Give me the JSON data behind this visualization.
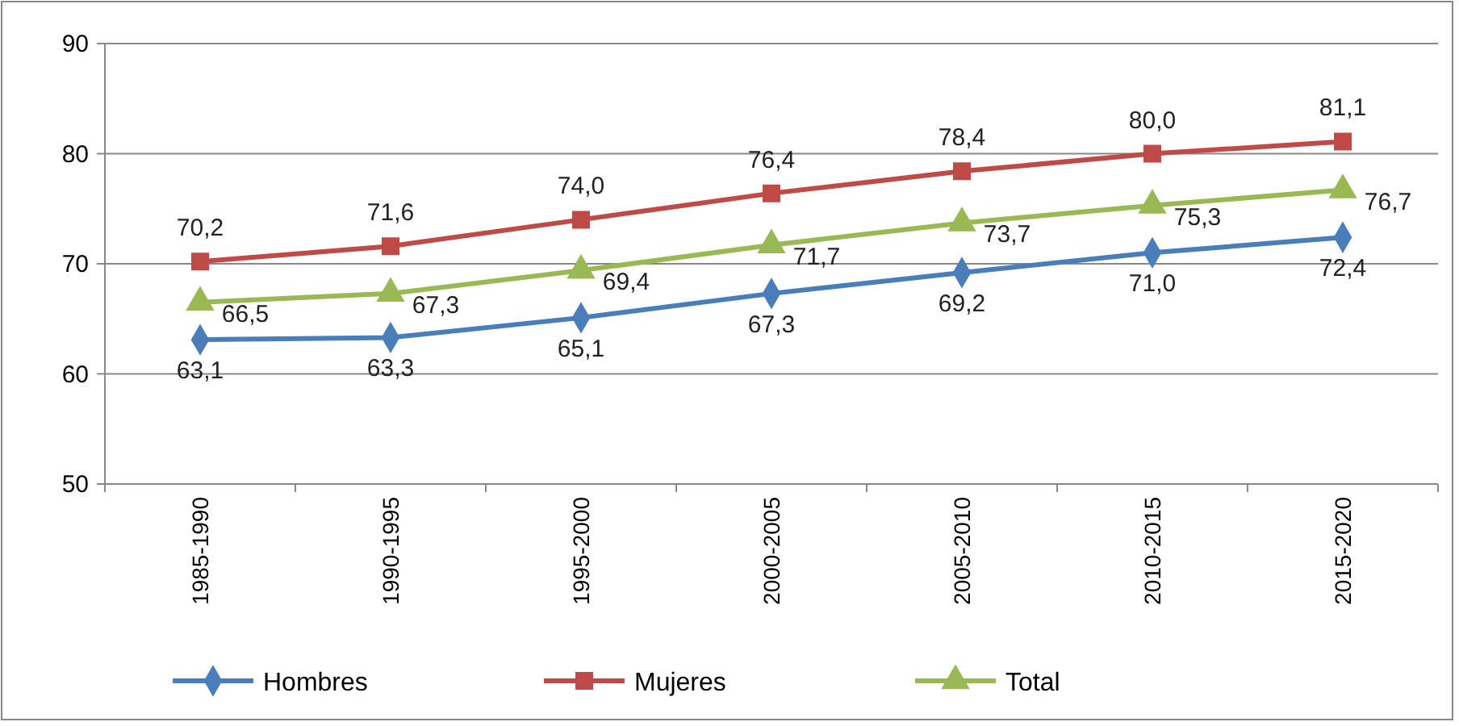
{
  "chart_data": {
    "type": "line",
    "categories": [
      "1985-1990",
      "1990-1995",
      "1995-2000",
      "2000-2005",
      "2005-2010",
      "2010-2015",
      "2015-2020"
    ],
    "series": [
      {
        "name": "Hombres",
        "color": "#4a7ebb",
        "marker": "diamond",
        "values": [
          63.1,
          63.3,
          65.1,
          67.3,
          69.2,
          71.0,
          72.4
        ],
        "value_labels": [
          "63,1",
          "63,3",
          "65,1",
          "67,3",
          "69,2",
          "71,0",
          "72,4"
        ]
      },
      {
        "name": "Mujeres",
        "color": "#be4b48",
        "marker": "square",
        "values": [
          70.2,
          71.6,
          74.0,
          76.4,
          78.4,
          80.0,
          81.1
        ],
        "value_labels": [
          "70,2",
          "71,6",
          "74,0",
          "76,4",
          "78,4",
          "80,0",
          "81,1"
        ]
      },
      {
        "name": "Total",
        "color": "#98b954",
        "marker": "triangle",
        "values": [
          66.5,
          67.3,
          69.4,
          71.7,
          73.7,
          75.3,
          76.7
        ],
        "value_labels": [
          "66,5",
          "67,3",
          "69,4",
          "71,7",
          "73,7",
          "75,3",
          "76,7"
        ]
      }
    ],
    "ylim": [
      50,
      90
    ],
    "yticks": [
      50,
      60,
      70,
      80,
      90
    ],
    "grid": "y",
    "legend": "bottom"
  }
}
